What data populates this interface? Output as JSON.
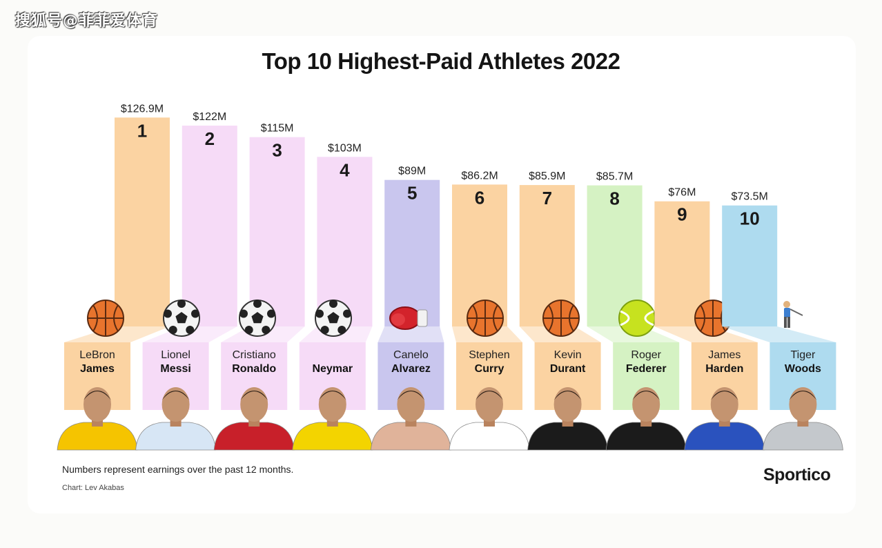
{
  "watermark": "搜狐号@菲菲爱体育",
  "brand": "Sportico",
  "footnote": "Numbers represent earnings over the past 12 months.",
  "credit": "Chart: Lev Akabas",
  "chart_data": {
    "type": "bar",
    "title": "Top 10 Highest-Paid Athletes 2022",
    "unit": "$M",
    "categories": [
      "LeBron James",
      "Lionel Messi",
      "Cristiano Ronaldo",
      "Neymar",
      "Canelo Alvarez",
      "Stephen Curry",
      "Kevin Durant",
      "Roger Federer",
      "James Harden",
      "Tiger Woods"
    ],
    "athletes": [
      {
        "rank": "1",
        "first": "LeBron",
        "last": "James",
        "value": 126.9,
        "label": "$126.9M",
        "sport": "basketball",
        "color": "#fbd3a2",
        "jersey": "#f5c400"
      },
      {
        "rank": "2",
        "first": "Lionel",
        "last": "Messi",
        "value": 122,
        "label": "$122M",
        "sport": "soccer",
        "color": "#f6dbf7",
        "jersey": "#d7e6f5"
      },
      {
        "rank": "3",
        "first": "Cristiano",
        "last": "Ronaldo",
        "value": 115,
        "label": "$115M",
        "sport": "soccer",
        "color": "#f6dbf7",
        "jersey": "#c8202a"
      },
      {
        "rank": "4",
        "first": "",
        "last": "Neymar",
        "value": 103,
        "label": "$103M",
        "sport": "soccer",
        "color": "#f6dbf7",
        "jersey": "#f3d400"
      },
      {
        "rank": "5",
        "first": "Canelo",
        "last": "Alvarez",
        "value": 89,
        "label": "$89M",
        "sport": "boxing",
        "color": "#c9c6ee",
        "jersey": "#e0b39a"
      },
      {
        "rank": "6",
        "first": "Stephen",
        "last": "Curry",
        "value": 86.2,
        "label": "$86.2M",
        "sport": "basketball",
        "color": "#fbd3a2",
        "jersey": "#ffffff"
      },
      {
        "rank": "7",
        "first": "Kevin",
        "last": "Durant",
        "value": 85.9,
        "label": "$85.9M",
        "sport": "basketball",
        "color": "#fbd3a2",
        "jersey": "#1b1b1b"
      },
      {
        "rank": "8",
        "first": "Roger",
        "last": "Federer",
        "value": 85.7,
        "label": "$85.7M",
        "sport": "tennis",
        "color": "#d5f2c3",
        "jersey": "#1b1b1b"
      },
      {
        "rank": "9",
        "first": "James",
        "last": "Harden",
        "value": 76,
        "label": "$76M",
        "sport": "basketball",
        "color": "#fbd3a2",
        "jersey": "#2a52be"
      },
      {
        "rank": "10",
        "first": "Tiger",
        "last": "Woods",
        "value": 73.5,
        "label": "$73.5M",
        "sport": "golf",
        "color": "#aedbef",
        "jersey": "#c4c8cc"
      }
    ]
  }
}
